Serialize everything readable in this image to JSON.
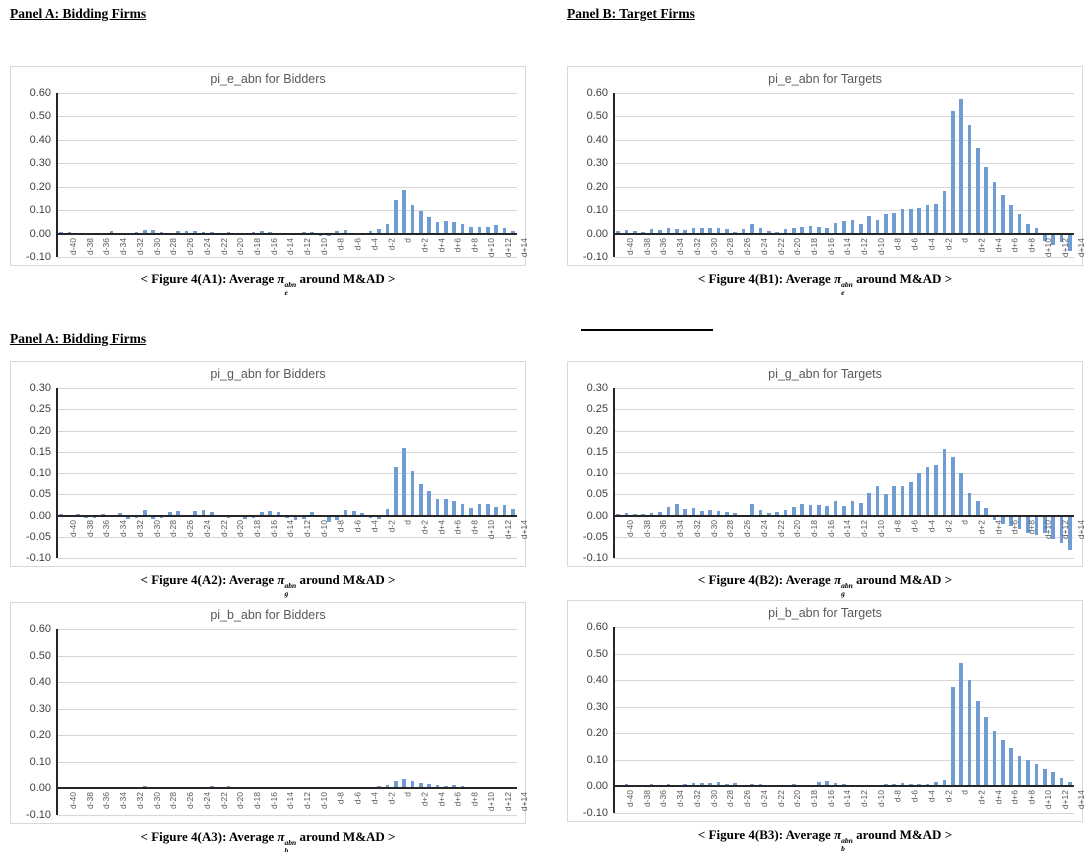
{
  "headers": {
    "panel_a": "Panel A: Bidding Firms",
    "panel_b": "Panel B: Target Firms",
    "panel_a2": "Panel A: Bidding Firms"
  },
  "colors": {
    "bar": "#6F9CD2",
    "grid": "#D6D6D6",
    "axis": "#262626",
    "title": "#595959",
    "ytick": "#3F3F3F",
    "xtick": "#595959",
    "border": "#D9D9D9"
  },
  "chart_data": [
    {
      "id": "A1",
      "type": "bar",
      "title": "pi_e_abn for Bidders",
      "ylim": [
        -0.1,
        0.6
      ],
      "ystep": 0.1,
      "grid": true,
      "legend": "none",
      "yticklabels": [
        "0.60",
        "0.50",
        "0.40",
        "0.30",
        "0.20",
        "0.10",
        "0.00",
        "-0.10"
      ],
      "xticklabels": [
        "d-40",
        "d-38",
        "d-36",
        "d-34",
        "d-32",
        "d-30",
        "d-28",
        "d-26",
        "d-24",
        "d-22",
        "d-20",
        "d-18",
        "d-16",
        "d-14",
        "d-12",
        "d-10",
        "d-8",
        "d-6",
        "d-4",
        "d-2",
        "d",
        "d+2",
        "d+4",
        "d+6",
        "d+8",
        "d+10",
        "d+12",
        "d+14"
      ],
      "xlabel_step": 2,
      "values": [
        0.005,
        0.008,
        -0.008,
        0.004,
        -0.006,
        0.004,
        0.01,
        0.004,
        -0.004,
        0.006,
        0.015,
        0.014,
        0.006,
        0.004,
        0.01,
        0.012,
        0.01,
        0.008,
        0.006,
        0.004,
        0.006,
        -0.008,
        -0.006,
        0.008,
        0.01,
        0.006,
        0.004,
        -0.008,
        0.004,
        0.008,
        0.008,
        -0.01,
        -0.012,
        0.012,
        0.015,
        0.004,
        0.003,
        0.01,
        0.02,
        0.04,
        0.145,
        0.185,
        0.12,
        0.095,
        0.07,
        0.048,
        0.055,
        0.05,
        0.04,
        0.03,
        0.026,
        0.03,
        0.035,
        0.025,
        0.012
      ],
      "caption": {
        "prefix": "< Figure 4(A1): Average ",
        "pi": "π",
        "sup": "abn",
        "sub": "e",
        "suffix": " around M&AD >"
      }
    },
    {
      "id": "B1",
      "type": "bar",
      "title": "pi_e_abn for Targets",
      "ylim": [
        -0.1,
        0.6
      ],
      "ystep": 0.1,
      "grid": true,
      "legend": "none",
      "yticklabels": [
        "0.60",
        "0.50",
        "0.40",
        "0.30",
        "0.20",
        "0.10",
        "0.00",
        "-0.10"
      ],
      "xticklabels": [
        "d-40",
        "d-38",
        "d-36",
        "d-34",
        "d-32",
        "d-30",
        "d-28",
        "d-26",
        "d-24",
        "d-22",
        "d-20",
        "d-18",
        "d-16",
        "d-14",
        "d-12",
        "d-10",
        "d-8",
        "d-6",
        "d-4",
        "d-2",
        "d",
        "d+2",
        "d+4",
        "d+6",
        "d+8",
        "d+10",
        "d+12",
        "d+14"
      ],
      "xlabel_step": 2,
      "values": [
        0.01,
        0.015,
        0.012,
        0.005,
        0.02,
        0.015,
        0.022,
        0.018,
        0.015,
        0.025,
        0.022,
        0.025,
        0.022,
        0.02,
        0.005,
        0.02,
        0.042,
        0.025,
        0.01,
        0.008,
        0.02,
        0.022,
        0.03,
        0.032,
        0.028,
        0.025,
        0.045,
        0.052,
        0.058,
        0.04,
        0.075,
        0.06,
        0.083,
        0.088,
        0.103,
        0.105,
        0.11,
        0.122,
        0.128,
        0.18,
        0.525,
        0.575,
        0.465,
        0.365,
        0.285,
        0.22,
        0.165,
        0.12,
        0.085,
        0.04,
        0.025,
        -0.03,
        -0.05,
        -0.035,
        -0.075
      ],
      "caption": {
        "prefix": "< Figure 4(B1): Average ",
        "pi": "π",
        "sup": "abn",
        "sub": "e",
        "suffix": " around M&AD >"
      }
    },
    {
      "id": "A2",
      "type": "bar",
      "title": "pi_g_abn for Bidders",
      "ylim": [
        -0.1,
        0.3
      ],
      "ystep": 0.05,
      "grid": true,
      "legend": "none",
      "yticklabels": [
        "0.30",
        "0.25",
        "0.20",
        "0.15",
        "0.10",
        "0.05",
        "0.00",
        "-0.05",
        "-0.10"
      ],
      "xticklabels": [
        "d-40",
        "d-38",
        "d-36",
        "d-34",
        "d-32",
        "d-30",
        "d-28",
        "d-26",
        "d-24",
        "d-22",
        "d-20",
        "d-18",
        "d-16",
        "d-14",
        "d-12",
        "d-10",
        "d-8",
        "d-6",
        "d-4",
        "d-2",
        "d",
        "d+2",
        "d+4",
        "d+6",
        "d+8",
        "d+10",
        "d+12",
        "d+14"
      ],
      "xlabel_step": 2,
      "values": [
        0.003,
        -0.004,
        0.004,
        -0.006,
        -0.005,
        0.003,
        -0.004,
        0.006,
        -0.008,
        -0.006,
        0.012,
        -0.008,
        -0.006,
        0.008,
        0.01,
        -0.004,
        0.01,
        0.013,
        0.008,
        -0.004,
        -0.006,
        -0.003,
        -0.008,
        -0.006,
        0.008,
        0.01,
        0.008,
        -0.005,
        -0.01,
        -0.008,
        0.008,
        -0.004,
        -0.015,
        -0.01,
        0.012,
        0.01,
        0.005,
        -0.005,
        -0.008,
        0.016,
        0.115,
        0.16,
        0.105,
        0.075,
        0.058,
        0.04,
        0.04,
        0.033,
        0.028,
        0.017,
        0.027,
        0.028,
        0.02,
        0.024,
        0.015
      ],
      "caption": {
        "prefix": "< Figure 4(A2): Average ",
        "pi": "π",
        "sup": "abn",
        "sub": "g",
        "suffix": " around M&AD >"
      }
    },
    {
      "id": "B2",
      "type": "bar",
      "title": "pi_g_abn for Targets",
      "ylim": [
        -0.1,
        0.3
      ],
      "ystep": 0.05,
      "grid": true,
      "legend": "none",
      "yticklabels": [
        "0.30",
        "0.25",
        "0.20",
        "0.15",
        "0.10",
        "0.05",
        "0.00",
        "-0.05",
        "-0.10"
      ],
      "xticklabels": [
        "d-40",
        "d-38",
        "d-36",
        "d-34",
        "d-32",
        "d-30",
        "d-28",
        "d-26",
        "d-24",
        "d-22",
        "d-20",
        "d-18",
        "d-16",
        "d-14",
        "d-12",
        "d-10",
        "d-8",
        "d-6",
        "d-4",
        "d-2",
        "d",
        "d+2",
        "d+4",
        "d+6",
        "d+8",
        "d+10",
        "d+12",
        "d+14"
      ],
      "xlabel_step": 2,
      "values": [
        0.003,
        0.006,
        0.004,
        0.003,
        0.006,
        0.008,
        0.02,
        0.027,
        0.015,
        0.017,
        0.01,
        0.012,
        0.01,
        0.008,
        0.005,
        0.002,
        0.027,
        0.012,
        0.005,
        0.008,
        0.013,
        0.02,
        0.027,
        0.025,
        0.025,
        0.023,
        0.033,
        0.022,
        0.033,
        0.03,
        0.054,
        0.07,
        0.05,
        0.07,
        0.07,
        0.08,
        0.1,
        0.113,
        0.12,
        0.157,
        0.137,
        0.1,
        0.054,
        0.035,
        0.017,
        -0.01,
        -0.02,
        -0.025,
        -0.032,
        -0.04,
        -0.045,
        -0.042,
        -0.055,
        -0.065,
        -0.08
      ],
      "caption": {
        "prefix": "< Figure 4(B2): Average ",
        "pi": "π",
        "sup": "abn",
        "sub": "g",
        "suffix": " around M&AD >"
      }
    },
    {
      "id": "A3",
      "type": "bar",
      "title": "pi_b_abn for Bidders",
      "ylim": [
        -0.1,
        0.6
      ],
      "ystep": 0.1,
      "grid": true,
      "legend": "none",
      "yticklabels": [
        "0.60",
        "0.50",
        "0.40",
        "0.30",
        "0.20",
        "0.10",
        "0.00",
        "-0.10"
      ],
      "xticklabels": [
        "d-40",
        "d-38",
        "d-36",
        "d-34",
        "d-32",
        "d-30",
        "d-28",
        "d-26",
        "d-24",
        "d-22",
        "d-20",
        "d-18",
        "d-16",
        "d-14",
        "d-12",
        "d-10",
        "d-8",
        "d-6",
        "d-4",
        "d-2",
        "d",
        "d+2",
        "d+4",
        "d+6",
        "d+8",
        "d+10",
        "d+12",
        "d+14"
      ],
      "xlabel_step": 2,
      "values": [
        0.004,
        0.006,
        0.003,
        0.002,
        0.004,
        0.003,
        0.005,
        0.004,
        0.006,
        0.004,
        0.008,
        0.005,
        0.004,
        0.003,
        0.006,
        0.005,
        0.004,
        0.003,
        0.01,
        0.006,
        0.008,
        0.006,
        0.005,
        0.004,
        0.005,
        0.004,
        0.003,
        0.004,
        0.005,
        0.003,
        0.004,
        0.003,
        0.005,
        0.006,
        0.004,
        0.005,
        0.004,
        0.006,
        0.01,
        0.013,
        0.028,
        0.035,
        0.027,
        0.022,
        0.018,
        0.014,
        0.01,
        0.012,
        0.008,
        0.006,
        0.005,
        0.004,
        0.005,
        0.004,
        0.003
      ],
      "caption": {
        "prefix": "< Figure 4(A3): Average ",
        "pi": "π",
        "sup": "abn",
        "sub": "b",
        "suffix": " around M&AD >"
      }
    },
    {
      "id": "B3",
      "type": "bar",
      "title": "pi_b_abn for Targets",
      "ylim": [
        -0.1,
        0.6
      ],
      "ystep": 0.1,
      "grid": true,
      "legend": "none",
      "yticklabels": [
        "0.60",
        "0.50",
        "0.40",
        "0.30",
        "0.20",
        "0.10",
        "0.00",
        "-0.10"
      ],
      "xticklabels": [
        "d-40",
        "d-38",
        "d-36",
        "d-34",
        "d-32",
        "d-30",
        "d-28",
        "d-26",
        "d-24",
        "d-22",
        "d-20",
        "d-18",
        "d-16",
        "d-14",
        "d-12",
        "d-10",
        "d-8",
        "d-6",
        "d-4",
        "d-2",
        "d",
        "d+2",
        "d+4",
        "d+6",
        "d+8",
        "d+10",
        "d+12",
        "d+14"
      ],
      "xlabel_step": 2,
      "values": [
        0.005,
        0.008,
        0.006,
        0.004,
        0.008,
        0.006,
        0.008,
        0.005,
        0.01,
        0.012,
        0.013,
        0.013,
        0.017,
        0.008,
        0.012,
        0.006,
        0.01,
        0.008,
        0.005,
        0.004,
        0.006,
        0.008,
        0.005,
        0.006,
        0.018,
        0.02,
        0.012,
        0.008,
        0.006,
        0.005,
        0.006,
        0.005,
        0.008,
        0.01,
        0.012,
        0.01,
        0.008,
        0.01,
        0.015,
        0.025,
        0.375,
        0.465,
        0.4,
        0.32,
        0.26,
        0.21,
        0.175,
        0.145,
        0.115,
        0.1,
        0.085,
        0.065,
        0.055,
        0.03,
        0.018
      ],
      "caption": {
        "prefix": "< Figure 4(B3): Average ",
        "pi": "π",
        "sup": "abn",
        "sub": "b",
        "suffix": " around M&AD >"
      }
    }
  ]
}
